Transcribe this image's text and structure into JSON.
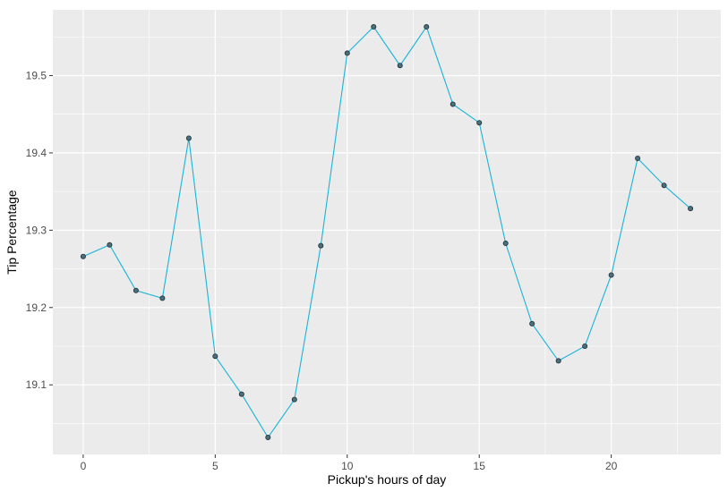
{
  "chart_data": {
    "type": "line",
    "title": "",
    "xlabel": "Pickup's hours of day",
    "ylabel": "Tip Percentage",
    "xlim": [
      -1.15,
      24.15
    ],
    "ylim": [
      19.01,
      19.585
    ],
    "x_ticks": [
      0,
      5,
      10,
      15,
      20
    ],
    "x_tick_labels": [
      "0",
      "5",
      "10",
      "15",
      "20"
    ],
    "y_ticks": [
      19.1,
      19.2,
      19.3,
      19.4,
      19.5
    ],
    "y_tick_labels": [
      "19.1",
      "19.2",
      "19.3",
      "19.4",
      "19.5"
    ],
    "grid": true,
    "legend": "none",
    "colors": {
      "panel_background": "#ebebeb",
      "grid_major": "#ffffff",
      "line": "#1ab4d6",
      "point_fill": "#4a6f7d",
      "point_stroke": "#1e2d33",
      "axis_text": "#4d4d4d",
      "axis_title": "#000000"
    },
    "series": [
      {
        "x": [
          0,
          1,
          2,
          3,
          4,
          5,
          6,
          7,
          8,
          9,
          10,
          11,
          12,
          13,
          14,
          15,
          16,
          17,
          18,
          19,
          20,
          21,
          22,
          23
        ],
        "y": [
          19.266,
          19.281,
          19.222,
          19.212,
          19.419,
          19.137,
          19.088,
          19.032,
          19.081,
          19.28,
          19.529,
          19.563,
          19.513,
          19.563,
          19.463,
          19.439,
          19.283,
          19.179,
          19.131,
          19.15,
          19.242,
          19.393,
          19.358,
          19.328
        ]
      }
    ]
  }
}
